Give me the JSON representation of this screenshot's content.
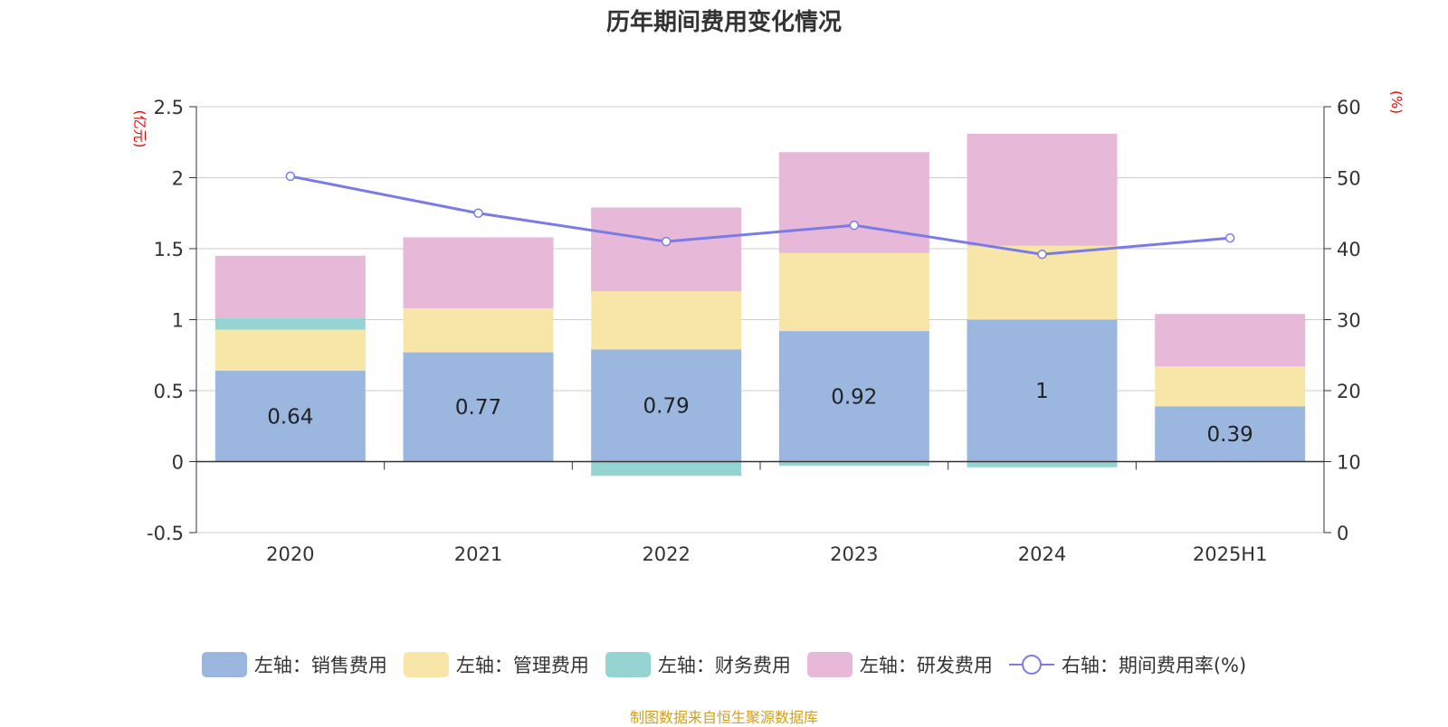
{
  "chart_data": {
    "type": "bar",
    "title": "历年期间费用变化情况",
    "left_unit": "(亿元)",
    "right_unit": "(%)",
    "categories": [
      "2020",
      "2021",
      "2022",
      "2023",
      "2024",
      "2025H1"
    ],
    "left_axis": {
      "ylim": [
        -0.5,
        2.5
      ],
      "ticks": [
        "-0.5",
        "0",
        "0.5",
        "1",
        "1.5",
        "2",
        "2.5"
      ]
    },
    "right_axis": {
      "ylim": [
        0,
        60
      ],
      "ticks": [
        "0",
        "10",
        "20",
        "30",
        "40",
        "50",
        "60"
      ]
    },
    "stacked_series": [
      {
        "name": "左轴：销售费用",
        "color": "#9bb7e0",
        "values": [
          0.64,
          0.77,
          0.79,
          0.92,
          1.0,
          0.39
        ]
      },
      {
        "name": "左轴：管理费用",
        "color": "#f7e6a8",
        "values": [
          0.29,
          0.31,
          0.41,
          0.55,
          0.52,
          0.28
        ]
      },
      {
        "name": "左轴：财务费用",
        "color": "#96d4d4",
        "values": [
          0.08,
          0.0,
          -0.1,
          -0.03,
          -0.04,
          0.0
        ]
      },
      {
        "name": "左轴：研发费用",
        "color": "#e8b8d8",
        "values": [
          0.44,
          0.5,
          0.59,
          0.71,
          0.79,
          0.37
        ]
      }
    ],
    "data_labels": [
      "0.64",
      "0.77",
      "0.79",
      "0.92",
      "1",
      "0.39"
    ],
    "line_series": {
      "name": "右轴：期间费用率(%)",
      "color": "#7b7be8",
      "values": [
        50.2,
        45.0,
        41.0,
        43.3,
        39.2,
        41.5
      ]
    },
    "grid": true
  },
  "legend": [
    {
      "label": "左轴：销售费用",
      "color": "#9bb7e0",
      "kind": "bar"
    },
    {
      "label": "左轴：管理费用",
      "color": "#f7e6a8",
      "kind": "bar"
    },
    {
      "label": "左轴：财务费用",
      "color": "#96d4d4",
      "kind": "bar"
    },
    {
      "label": "左轴：研发费用",
      "color": "#e8b8d8",
      "kind": "bar"
    },
    {
      "label": "右轴：期间费用率(%)",
      "color": "#7b7be8",
      "kind": "line"
    }
  ],
  "footer": "制图数据来自恒生聚源数据库"
}
